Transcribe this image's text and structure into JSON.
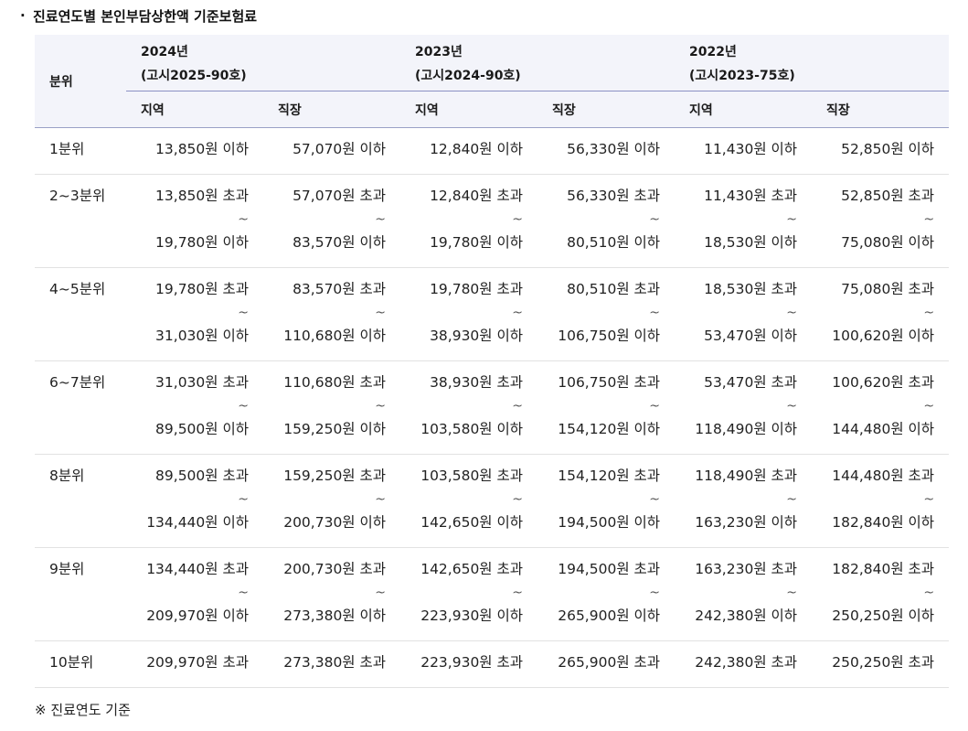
{
  "heading": {
    "bullet": "·",
    "title": "진료연도별 본인부담상한액 기준보험료"
  },
  "table": {
    "grade_header": "분위",
    "years": [
      {
        "year": "2024년",
        "notice": "(고시2025-90호)"
      },
      {
        "year": "2023년",
        "notice": "(고시2024-90호)"
      },
      {
        "year": "2022년",
        "notice": "(고시2023-75호)"
      }
    ],
    "sub_headers": [
      "지역",
      "직장",
      "지역",
      "직장",
      "지역",
      "직장"
    ],
    "tilde": "~",
    "rows": [
      {
        "grade": "1분위",
        "cells": [
          {
            "upper": "13,850원 이하"
          },
          {
            "upper": "57,070원 이하"
          },
          {
            "upper": "12,840원 이하"
          },
          {
            "upper": "56,330원 이하"
          },
          {
            "upper": "11,430원 이하"
          },
          {
            "upper": "52,850원 이하"
          }
        ]
      },
      {
        "grade": "2~3분위",
        "cells": [
          {
            "lower": "13,850원 초과",
            "upper": "19,780원 이하"
          },
          {
            "lower": "57,070원 초과",
            "upper": "83,570원 이하"
          },
          {
            "lower": "12,840원 초과",
            "upper": "19,780원 이하"
          },
          {
            "lower": "56,330원 초과",
            "upper": "80,510원 이하"
          },
          {
            "lower": "11,430원 초과",
            "upper": "18,530원 이하"
          },
          {
            "lower": "52,850원 초과",
            "upper": "75,080원 이하"
          }
        ]
      },
      {
        "grade": "4~5분위",
        "cells": [
          {
            "lower": "19,780원 초과",
            "upper": "31,030원 이하"
          },
          {
            "lower": "83,570원 초과",
            "upper": "110,680원 이하"
          },
          {
            "lower": "19,780원 초과",
            "upper": "38,930원 이하"
          },
          {
            "lower": "80,510원 초과",
            "upper": "106,750원 이하"
          },
          {
            "lower": "18,530원 초과",
            "upper": "53,470원 이하"
          },
          {
            "lower": "75,080원 초과",
            "upper": "100,620원 이하"
          }
        ]
      },
      {
        "grade": "6~7분위",
        "cells": [
          {
            "lower": "31,030원 초과",
            "upper": "89,500원 이하"
          },
          {
            "lower": "110,680원 초과",
            "upper": "159,250원 이하"
          },
          {
            "lower": "38,930원 초과",
            "upper": "103,580원 이하"
          },
          {
            "lower": "106,750원 초과",
            "upper": "154,120원 이하"
          },
          {
            "lower": "53,470원 초과",
            "upper": "118,490원 이하"
          },
          {
            "lower": "100,620원 초과",
            "upper": "144,480원 이하"
          }
        ]
      },
      {
        "grade": "8분위",
        "cells": [
          {
            "lower": "89,500원 초과",
            "upper": "134,440원 이하"
          },
          {
            "lower": "159,250원 초과",
            "upper": "200,730원 이하"
          },
          {
            "lower": "103,580원 초과",
            "upper": "142,650원 이하"
          },
          {
            "lower": "154,120원 초과",
            "upper": "194,500원 이하"
          },
          {
            "lower": "118,490원 초과",
            "upper": "163,230원 이하"
          },
          {
            "lower": "144,480원 초과",
            "upper": "182,840원 이하"
          }
        ]
      },
      {
        "grade": "9분위",
        "cells": [
          {
            "lower": "134,440원 초과",
            "upper": "209,970원 이하"
          },
          {
            "lower": "200,730원 초과",
            "upper": "273,380원 이하"
          },
          {
            "lower": "142,650원 초과",
            "upper": "223,930원 이하"
          },
          {
            "lower": "194,500원 초과",
            "upper": "265,900원 이하"
          },
          {
            "lower": "163,230원 초과",
            "upper": "242,380원 이하"
          },
          {
            "lower": "182,840원 초과",
            "upper": "250,250원 이하"
          }
        ]
      },
      {
        "grade": "10분위",
        "cells": [
          {
            "lower": "209,970원 초과"
          },
          {
            "lower": "273,380원 초과"
          },
          {
            "lower": "223,930원 초과"
          },
          {
            "lower": "265,900원 초과"
          },
          {
            "lower": "242,380원 초과"
          },
          {
            "lower": "250,250원 초과"
          }
        ]
      }
    ]
  },
  "note": "※ 진료연도 기준"
}
